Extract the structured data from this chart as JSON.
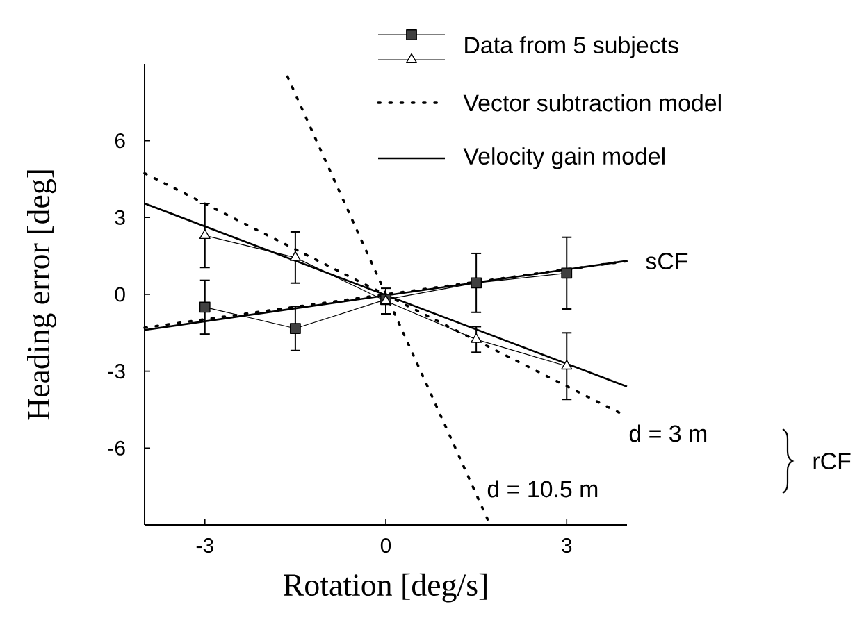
{
  "chart_data": {
    "type": "line",
    "xlabel": "Rotation [deg/s]",
    "ylabel": "Heading error [deg]",
    "x": [
      -3,
      -1.5,
      0,
      1.5,
      3
    ],
    "xlim": [
      -4,
      4
    ],
    "ylim": [
      -9,
      9
    ],
    "xticks": [
      -3,
      0,
      3
    ],
    "yticks": [
      -6,
      -3,
      0,
      3,
      6
    ],
    "legend": "top right",
    "series": [
      {
        "name": "Data from 5 subjects",
        "color": "#000000",
        "marker": "square",
        "line_style": "solid",
        "values": [
          -0.5,
          -1.33,
          -0.2,
          0.45,
          0.83
        ],
        "errors": [
          1.05,
          0.86,
          null,
          1.15,
          1.4
        ]
      },
      {
        "color": "#000000",
        "marker": "triangle",
        "line_style": "solid",
        "values": [
          2.3,
          1.44,
          -0.26,
          -1.76,
          -2.8
        ],
        "errors": [
          1.25,
          1.0,
          0.5,
          0.5,
          1.3
        ]
      },
      {
        "name": "Vector subtraction model",
        "color": "#000000",
        "marker": "none",
        "line_style": "dotted",
        "x": [
          -4,
          4
        ],
        "values": [
          -1.3,
          1.3
        ]
      },
      {
        "color": "#000000",
        "marker": "none",
        "line_style": "dotted",
        "x": [
          -4,
          4
        ],
        "values": [
          4.73,
          -4.77
        ]
      },
      {
        "color": "#000000",
        "marker": "none",
        "line_style": "dotted",
        "x": [
          -1.63,
          1.73
        ],
        "values": [
          8.5,
          -9
        ]
      },
      {
        "name": "Velocity gain model",
        "color": "#000000",
        "marker": "none",
        "line_style": "solid",
        "x": [
          -4,
          4
        ],
        "values": [
          -1.39,
          1.31
        ]
      },
      {
        "color": "#000000",
        "marker": "none",
        "line_style": "solid",
        "x": [
          -4,
          4
        ],
        "values": [
          3.55,
          -3.6
        ]
      }
    ],
    "annotations": [
      "sCF",
      "d = 3 m",
      "d = 10.5 m",
      "rCF"
    ]
  }
}
